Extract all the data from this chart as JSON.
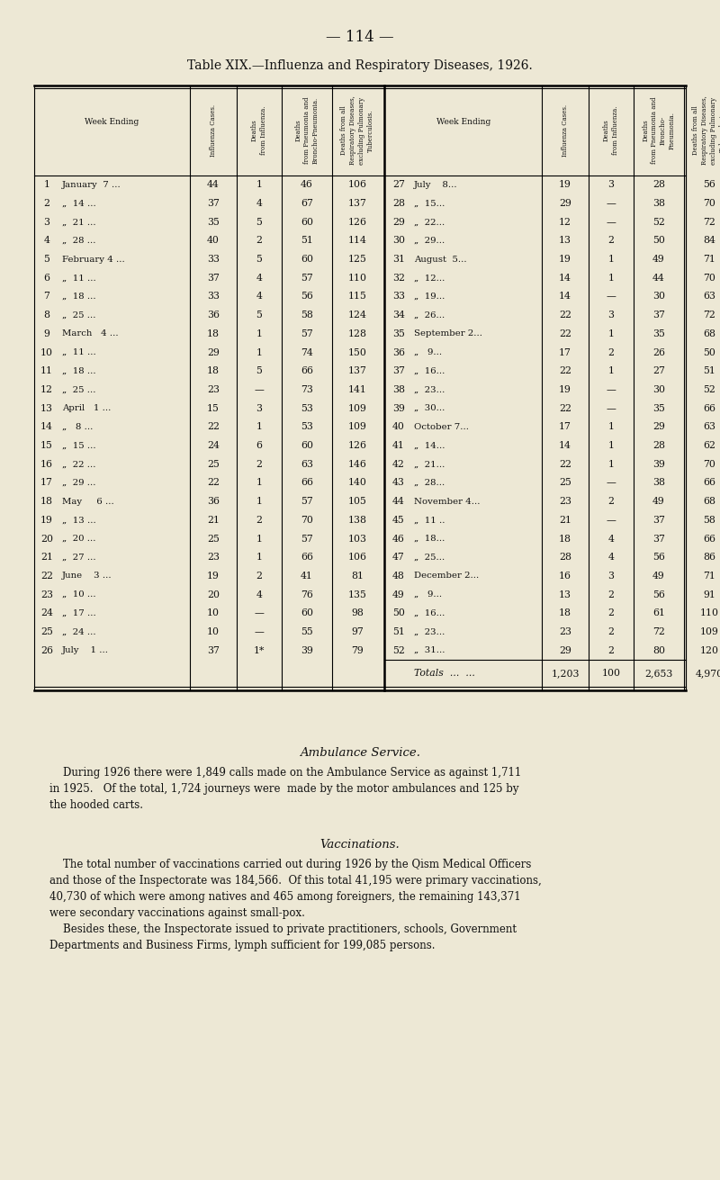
{
  "page_number": "— 114 —",
  "title": "Table XIX.—Influenza and Respiratory Diseases, 1926.",
  "bg_color": "#ede8d5",
  "text_color": "#111111",
  "rows": [
    [
      1,
      "January  7 ...",
      44,
      "1",
      46,
      106,
      27,
      "July    8...",
      19,
      "3",
      28,
      56
    ],
    [
      2,
      "„  14 ...",
      37,
      "4",
      67,
      137,
      28,
      "„  15...",
      29,
      "—",
      38,
      70
    ],
    [
      3,
      "„  21 ...",
      35,
      "5",
      60,
      126,
      29,
      "„  22...",
      12,
      "—",
      52,
      72
    ],
    [
      4,
      "„  28 ...",
      40,
      "2",
      51,
      114,
      30,
      "„  29...",
      13,
      "2",
      50,
      84
    ],
    [
      5,
      "February 4 ...",
      33,
      "5",
      60,
      125,
      31,
      "August  5...",
      19,
      "1",
      49,
      71
    ],
    [
      6,
      "„  11 ...",
      37,
      "4",
      57,
      110,
      32,
      "„  12...",
      14,
      "1",
      44,
      70
    ],
    [
      7,
      "„  18 ...",
      33,
      "4",
      56,
      115,
      33,
      "„  19...",
      14,
      "—",
      30,
      63
    ],
    [
      8,
      "„  25 ...",
      36,
      "5",
      58,
      124,
      34,
      "„  26...",
      22,
      "3",
      37,
      72
    ],
    [
      9,
      "March   4 ...",
      18,
      "1",
      57,
      128,
      35,
      "September 2...",
      22,
      "1",
      35,
      68
    ],
    [
      10,
      "„  11 ...",
      29,
      "1",
      74,
      150,
      36,
      "„   9...",
      17,
      "2",
      26,
      50
    ],
    [
      11,
      "„  18 ...",
      18,
      "5",
      66,
      137,
      37,
      "„  16...",
      22,
      "1",
      27,
      51
    ],
    [
      12,
      "„  25 ...",
      23,
      "—",
      73,
      141,
      38,
      "„  23...",
      19,
      "—",
      30,
      52
    ],
    [
      13,
      "April   1 ...",
      15,
      "3",
      53,
      109,
      39,
      "„  30...",
      22,
      "—",
      35,
      66
    ],
    [
      14,
      "„   8 ...",
      22,
      "1",
      53,
      109,
      40,
      "October 7...",
      17,
      "1",
      29,
      63
    ],
    [
      15,
      "„  15 ...",
      24,
      "6",
      60,
      126,
      41,
      "„  14...",
      14,
      "1",
      28,
      62
    ],
    [
      16,
      "„  22 ...",
      25,
      "2",
      63,
      146,
      42,
      "„  21...",
      22,
      "1",
      39,
      70
    ],
    [
      17,
      "„  29 ...",
      22,
      "1",
      66,
      140,
      43,
      "„  28...",
      25,
      "—",
      38,
      66
    ],
    [
      18,
      "May     6 ...",
      36,
      "1",
      57,
      105,
      44,
      "November 4...",
      23,
      "2",
      49,
      68
    ],
    [
      19,
      "„  13 ...",
      21,
      "2",
      70,
      138,
      45,
      "„  11 ..",
      21,
      "—",
      37,
      58
    ],
    [
      20,
      "„  20 ...",
      25,
      "1",
      57,
      103,
      46,
      "„  18...",
      18,
      "4",
      37,
      66
    ],
    [
      21,
      "„  27 ...",
      23,
      "1",
      66,
      106,
      47,
      "„  25...",
      28,
      "4",
      56,
      86
    ],
    [
      22,
      "June    3 ...",
      19,
      "2",
      41,
      81,
      48,
      "December 2...",
      16,
      "3",
      49,
      71
    ],
    [
      23,
      "„  10 ...",
      20,
      "4",
      76,
      135,
      49,
      "„   9...",
      13,
      "2",
      56,
      91
    ],
    [
      24,
      "„  17 ...",
      10,
      "—",
      60,
      98,
      50,
      "„  16...",
      18,
      "2",
      61,
      110
    ],
    [
      25,
      "„  24 ...",
      10,
      "—",
      55,
      97,
      51,
      "„  23...",
      23,
      "2",
      72,
      109
    ],
    [
      26,
      "July    1 ...",
      37,
      "1*",
      39,
      79,
      52,
      "„  31...",
      29,
      "2",
      80,
      120
    ]
  ],
  "totals": [
    "1,203",
    "100",
    "2,653",
    "4,970"
  ],
  "ambulance_title": "Ambulance Service.",
  "ambulance_text": "    During 1926 there were 1,849 calls made on the Ambulance Service as against 1,711\nin 1925.   Of the total, 1,724 journeys were  made by the motor ambulances and 125 by\nthe hooded carts.",
  "vaccinations_title": "Vaccinations.",
  "vaccinations_text": "    The total number of vaccinations carried out during 1926 by the Qism Medical Officers\nand those of the Inspectorate was 184,566.  Of this total 41,195 were primary vaccinations,\n40,730 of which were among natives and 465 among foreigners, the remaining 143,371\nwere secondary vaccinations against small-pox.\n    Besides these, the Inspectorate issued to private practitioners, schools, Government\nDepartments and Business Firms, lymph sufficient for 199,085 persons."
}
